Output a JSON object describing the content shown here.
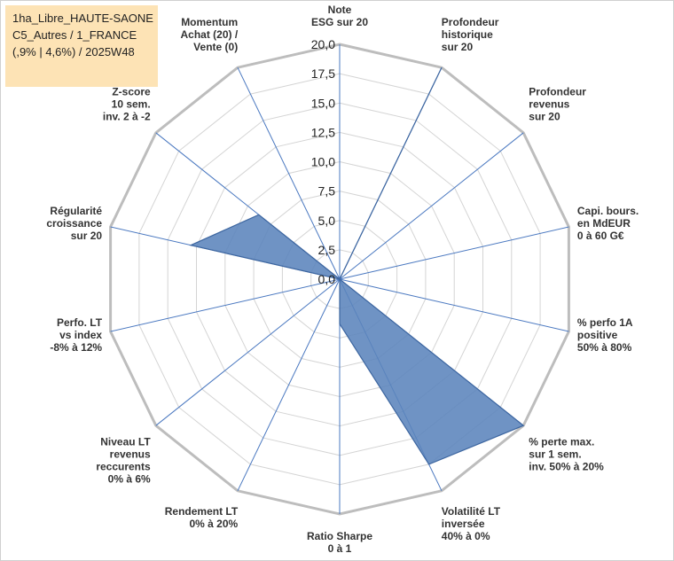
{
  "header": {
    "lines": [
      "1ha_Libre_HAUTE-SAONE",
      "C5_Autres / 1_FRANCE",
      "(,9% | 4,6%) / 2025W48"
    ]
  },
  "colors": {
    "fill": "#5b84bc",
    "stroke": "#3d66a0",
    "grid": "#d4d4d4",
    "outer": "#bdbdbd",
    "spoke": "#4a78c0"
  },
  "chart_data": {
    "type": "radar",
    "rmin": 0,
    "rmax": 20,
    "step": 2.5,
    "ticks": [
      "0,0",
      "2,5",
      "5,0",
      "7,5",
      "10,0",
      "12,5",
      "15,0",
      "17,5",
      "20,0"
    ],
    "axes": [
      {
        "label": [
          "Note",
          "ESG sur 20"
        ],
        "value": 0
      },
      {
        "label": [
          "Profondeur",
          "historique",
          "sur 20"
        ],
        "value": 20
      },
      {
        "label": [
          "Profondeur",
          "revenus",
          "sur 20"
        ],
        "value": 0
      },
      {
        "label": [
          "Capi. bours.",
          "en MdEUR",
          "0 à 60 G€"
        ],
        "value": 0
      },
      {
        "label": [
          "% perfo 1A",
          "positive",
          "50% à 80%"
        ],
        "value": 0
      },
      {
        "label": [
          "% perte max.",
          "sur 1 sem.",
          "inv. 50% à 20%"
        ],
        "value": 20
      },
      {
        "label": [
          "Volatilité LT",
          "inversée",
          "40% à 0%"
        ],
        "value": 17.5
      },
      {
        "label": [
          "Ratio Sharpe",
          "0 à 1"
        ],
        "value": 3.8
      },
      {
        "label": [
          "Rendement LT",
          "0% à 20%"
        ],
        "value": 0
      },
      {
        "label": [
          "Niveau LT",
          "revenus",
          "reccurents",
          "0% à 6%"
        ],
        "value": 0
      },
      {
        "label": [
          "Perfo. LT",
          "vs index",
          "-8% à 12%"
        ],
        "value": 0
      },
      {
        "label": [
          "Régularité",
          "croissance",
          "sur 20"
        ],
        "value": 13
      },
      {
        "label": [
          "Z-score",
          "10 sem.",
          "inv. 2 à -2"
        ],
        "value": 8.8
      },
      {
        "label": [
          "Momentum",
          "Achat (20) /",
          "Vente (0)"
        ],
        "value": 0
      }
    ]
  }
}
